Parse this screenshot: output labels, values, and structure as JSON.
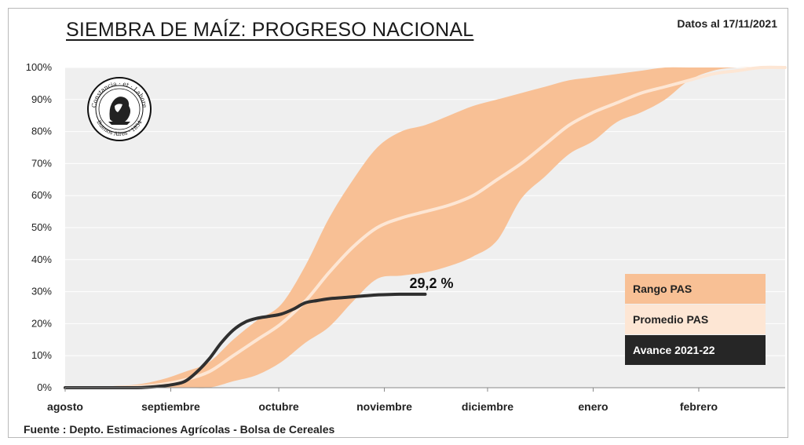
{
  "title": "SIEMBRA DE MAÍZ: PROGRESO NACIONAL",
  "date_note": "Datos al 17/11/2021",
  "source": "Fuente : Depto. Estimaciones Agrícolas - Bolsa de Cereales",
  "logo_text": [
    "Constancia · et · Labore",
    "Buenos Aires · 1854"
  ],
  "colors": {
    "range": "#f8c095",
    "average": "#fde6d4",
    "current": "#2f2f2f",
    "plot_bg": "#efefef"
  },
  "legend": {
    "range": "Rango PAS",
    "average": "Promedio PAS",
    "current": "Avance 2021-22"
  },
  "chart_data": {
    "type": "area",
    "title": "SIEMBRA DE MAÍZ: PROGRESO NACIONAL",
    "xlabel": "",
    "ylabel": "",
    "x_categories": [
      "agosto",
      "septiembre",
      "octubre",
      "noviembre",
      "diciembre",
      "enero",
      "febrero"
    ],
    "y_ticks": [
      "0%",
      "10%",
      "20%",
      "30%",
      "40%",
      "50%",
      "60%",
      "70%",
      "80%",
      "90%",
      "100%"
    ],
    "ylim": [
      0,
      100
    ],
    "x_unit": "week index (0 = 1 agosto; months start at weeks 0, 4.4, 8.9, 13.3, 17.6, 22, 26.4)",
    "month_ticks_x": [
      0,
      4.4,
      8.9,
      13.3,
      17.6,
      22,
      26.4
    ],
    "x": [
      0,
      1,
      2,
      3,
      4,
      5,
      6,
      7,
      8,
      9,
      10,
      11,
      12,
      13,
      14,
      15,
      16,
      17,
      18,
      19,
      20,
      21,
      22,
      23,
      24,
      25,
      26,
      27,
      28,
      29,
      30
    ],
    "series": [
      {
        "name": "Rango PAS",
        "type": "band",
        "upper": [
          0,
          0,
          0.5,
          1,
          2.5,
          5,
          8,
          15,
          21,
          26,
          38,
          53,
          65,
          75,
          80,
          82,
          85,
          88,
          90,
          92,
          94,
          96,
          97,
          98,
          99,
          100,
          100,
          100,
          100,
          100,
          100
        ],
        "lower": [
          0,
          0,
          0,
          0,
          0,
          0,
          0,
          2,
          4,
          8,
          14,
          19,
          27,
          34,
          35,
          36,
          38,
          41,
          46,
          59,
          66,
          73,
          77,
          83,
          86,
          90,
          96,
          99,
          100,
          100,
          100
        ]
      },
      {
        "name": "Promedio PAS",
        "type": "line",
        "values": [
          0,
          0,
          0,
          0.3,
          1,
          2.5,
          5,
          10,
          15,
          20,
          27,
          36,
          44,
          50,
          53,
          55,
          57,
          60,
          65,
          70,
          76,
          82,
          86,
          89,
          92,
          94,
          96,
          98,
          99,
          100,
          100
        ]
      },
      {
        "name": "Avance 2021-22",
        "type": "line",
        "x": [
          0,
          1,
          2,
          3,
          3.5,
          4,
          4.5,
          5,
          5.5,
          6,
          6.5,
          7,
          7.5,
          8,
          8.5,
          9,
          9.5,
          10,
          10.5,
          11,
          11.5,
          12,
          12.5,
          13,
          13.5,
          14,
          14.5,
          15
        ],
        "values": [
          0,
          0,
          0,
          0,
          0.2,
          0.5,
          1,
          2,
          5,
          9,
          14,
          18,
          20.5,
          21.7,
          22.3,
          23,
          24.5,
          26.5,
          27.2,
          27.8,
          28.1,
          28.4,
          28.7,
          29,
          29.1,
          29.2,
          29.2,
          29.2
        ]
      }
    ],
    "annotations": [
      {
        "text": "29,2 %"
      }
    ]
  }
}
